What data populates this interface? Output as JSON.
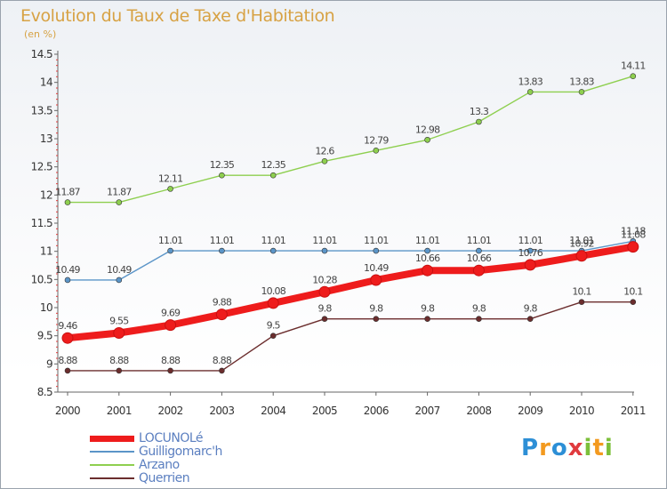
{
  "header": {
    "title": "Evolution du Taux de Taxe d'Habitation",
    "subtitle": "(en %)"
  },
  "logo": {
    "text": "Proxiti",
    "letters": [
      {
        "ch": "P",
        "color": "#2d8fd6"
      },
      {
        "ch": "r",
        "color": "#f39a1f"
      },
      {
        "ch": "o",
        "color": "#2d8fd6"
      },
      {
        "ch": "x",
        "color": "#e03a3e"
      },
      {
        "ch": "i",
        "color": "#7cbf3a"
      },
      {
        "ch": "t",
        "color": "#f39a1f"
      },
      {
        "ch": "i",
        "color": "#7cbf3a"
      }
    ]
  },
  "chart_data": {
    "type": "line",
    "title": "Evolution du Taux de Taxe d'Habitation",
    "ylabel": "(en %)",
    "xlabel": "",
    "x": [
      "2000",
      "2001",
      "2002",
      "2003",
      "2004",
      "2005",
      "2006",
      "2007",
      "2008",
      "2009",
      "2010",
      "2011"
    ],
    "ylim": [
      8.5,
      14.5
    ],
    "yticks": [
      "8.5",
      "9",
      "9.5",
      "10",
      "10.5",
      "11",
      "11.5",
      "12",
      "12.5",
      "13",
      "13.5",
      "14",
      "14.5"
    ],
    "grid": false,
    "legend": "bottom-left",
    "series": [
      {
        "name": "Querrien",
        "color": "#6b2d2d",
        "values": [
          8.88,
          8.88,
          8.88,
          8.88,
          9.5,
          9.8,
          9.8,
          9.8,
          9.8,
          9.8,
          10.1,
          10.1
        ],
        "labels": [
          "8.88",
          "8.88",
          "8.88",
          "8.88",
          "9.5",
          "9.8",
          "9.8",
          "9.8",
          "9.8",
          "9.8",
          "10.1",
          "10.1"
        ]
      },
      {
        "name": "Arzano",
        "color": "#8ecf4f",
        "values": [
          11.87,
          11.87,
          12.11,
          12.35,
          12.35,
          12.6,
          12.79,
          12.98,
          13.3,
          13.83,
          13.83,
          14.11
        ],
        "labels": [
          "11.87",
          "11.87",
          "12.11",
          "12.35",
          "12.35",
          "12.6",
          "12.79",
          "12.98",
          "13.3",
          "13.83",
          "13.83",
          "14.11"
        ]
      },
      {
        "name": "Guilligomarc'h",
        "color": "#5b95c8",
        "values": [
          10.49,
          10.49,
          11.01,
          11.01,
          11.01,
          11.01,
          11.01,
          11.01,
          11.01,
          11.01,
          11.01,
          11.18
        ],
        "labels": [
          "10.49",
          "10.49",
          "11.01",
          "11.01",
          "11.01",
          "11.01",
          "11.01",
          "11.01",
          "11.01",
          "11.01",
          "11.01",
          "11.18"
        ]
      },
      {
        "name": "LOCUNOLé",
        "color": "#ee1c1c",
        "values": [
          9.46,
          9.55,
          9.69,
          9.88,
          10.08,
          10.28,
          10.49,
          10.66,
          10.66,
          10.76,
          10.92,
          11.08
        ],
        "labels": [
          "9.46",
          "9.55",
          "9.69",
          "9.88",
          "10.08",
          "10.28",
          "10.49",
          "10.66",
          "10.66",
          "10.76",
          "10.92",
          "11.08"
        ]
      }
    ],
    "legend_order": [
      "LOCUNOLé",
      "Guilligomarc'h",
      "Arzano",
      "Querrien"
    ]
  }
}
